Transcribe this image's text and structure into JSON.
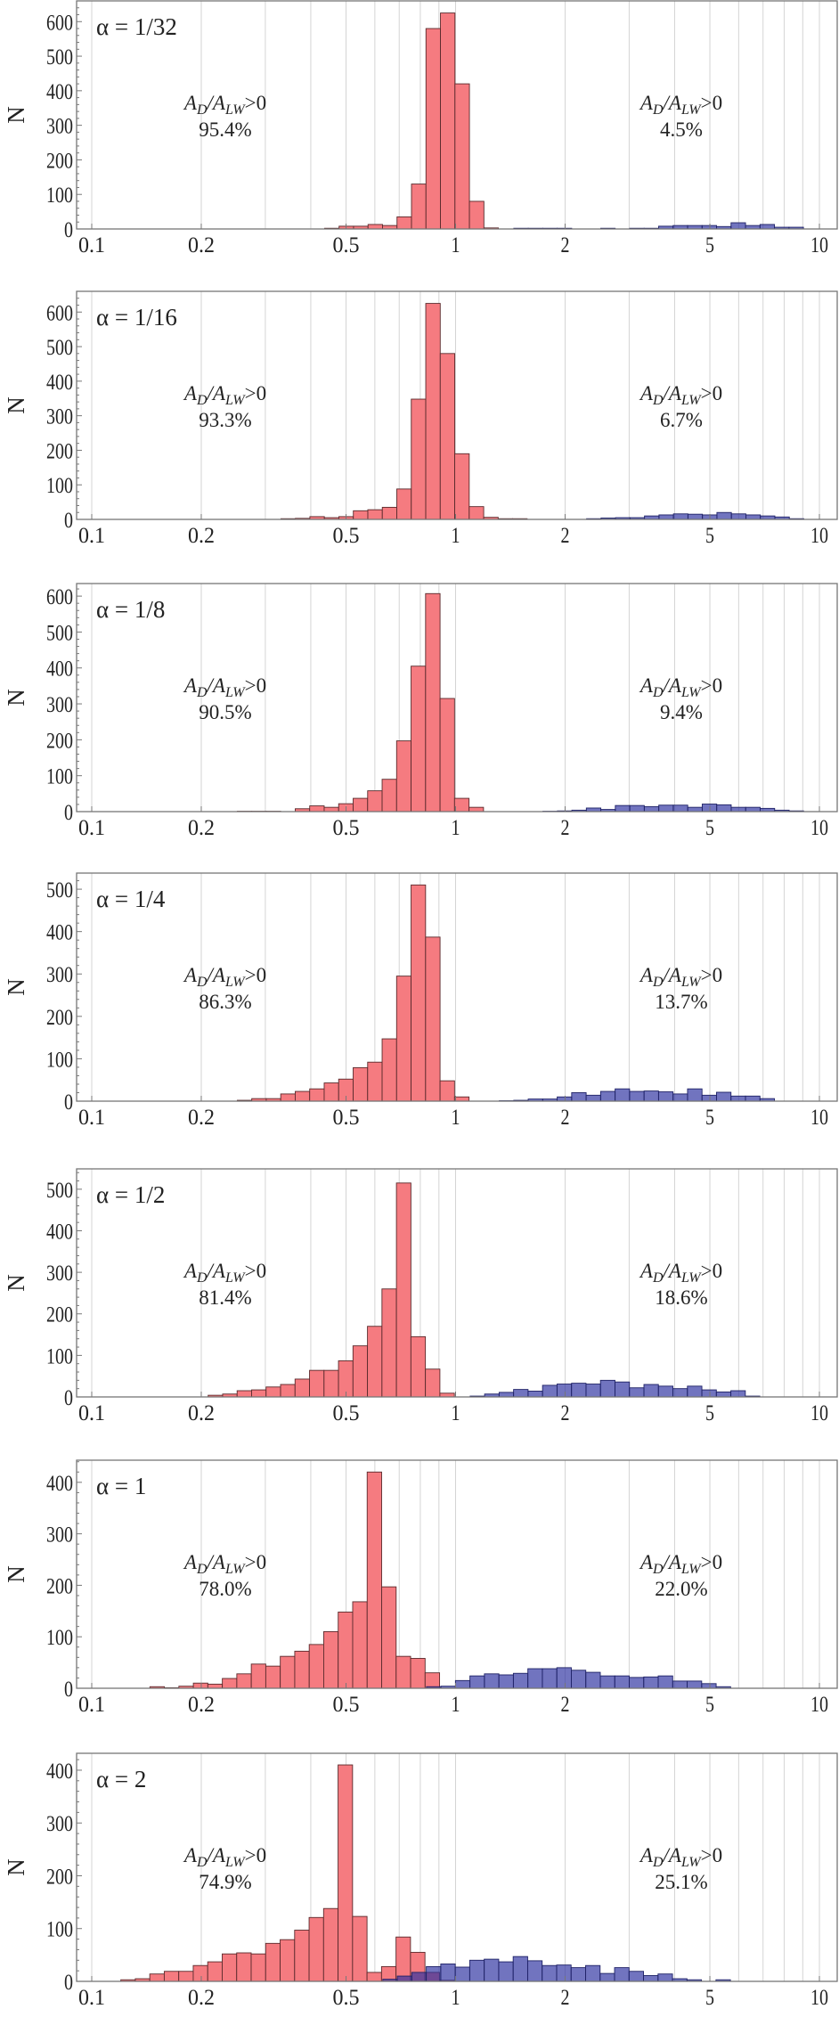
{
  "colors": {
    "red": "#f57b80",
    "blue": "#6f73bc"
  },
  "chart_data": [
    {
      "type": "bar",
      "title": "α = 1/32",
      "ylabel": "N",
      "x_scale": "log",
      "xlim": [
        0.1,
        10
      ],
      "ylim": [
        0,
        660
      ],
      "xticks": [
        "0.1",
        "0.2",
        "0.5",
        "1",
        "2",
        "5",
        "10"
      ],
      "yticks": [
        "0",
        "100",
        "200",
        "300",
        "400",
        "500",
        "600"
      ],
      "grid": "vertical",
      "bin_ratio": 1.096,
      "annotations": [
        {
          "text": "AD/ALW>0",
          "value": "95.4%"
        },
        {
          "text": "AD/ALW>0",
          "value": "4.5%"
        }
      ],
      "series": [
        {
          "color": "red",
          "bin_start": 0.4365,
          "counts": [
            2,
            8,
            8,
            13,
            10,
            35,
            130,
            580,
            625,
            420,
            80,
            3
          ]
        },
        {
          "color": "blue",
          "bin_start": 1.4454,
          "counts": [
            2,
            2,
            2,
            2,
            0,
            0,
            2,
            0,
            2,
            2,
            8,
            10,
            10,
            10,
            7,
            18,
            10,
            13,
            5,
            5
          ]
        }
      ]
    },
    {
      "type": "bar",
      "title": "α = 1/16",
      "ylabel": "N",
      "x_scale": "log",
      "xlim": [
        0.1,
        10
      ],
      "ylim": [
        0,
        660
      ],
      "xticks": [
        "0.1",
        "0.2",
        "0.5",
        "1",
        "2",
        "5",
        "10"
      ],
      "yticks": [
        "0",
        "100",
        "200",
        "300",
        "400",
        "500",
        "600"
      ],
      "grid": "vertical",
      "bin_ratio": 1.096,
      "annotations": [
        {
          "text": "AD/ALW>0",
          "value": "93.3%"
        },
        {
          "text": "AD/ALW>0",
          "value": "6.7%"
        }
      ],
      "series": [
        {
          "color": "red",
          "bin_start": 0.3311,
          "counts": [
            2,
            3,
            8,
            5,
            8,
            25,
            28,
            35,
            88,
            348,
            625,
            480,
            190,
            37,
            6,
            2,
            2
          ]
        },
        {
          "color": "blue",
          "bin_start": 2.2909,
          "counts": [
            2,
            4,
            5,
            5,
            10,
            13,
            16,
            15,
            13,
            20,
            16,
            13,
            10,
            7,
            2
          ]
        }
      ]
    },
    {
      "type": "bar",
      "title": "α = 1/8",
      "ylabel": "N",
      "x_scale": "log",
      "xlim": [
        0.1,
        10
      ],
      "ylim": [
        0,
        635
      ],
      "xticks": [
        "0.1",
        "0.2",
        "0.5",
        "1",
        "2",
        "5",
        "10"
      ],
      "yticks": [
        "0",
        "100",
        "200",
        "300",
        "400",
        "500",
        "600"
      ],
      "grid": "vertical",
      "bin_ratio": 1.096,
      "annotations": [
        {
          "text": "AD/ALW>0",
          "value": "90.5%"
        },
        {
          "text": "AD/ALW>0",
          "value": "9.4%"
        }
      ],
      "series": [
        {
          "color": "red",
          "bin_start": 0.2512,
          "counts": [
            1,
            1,
            1,
            0,
            8,
            16,
            12,
            22,
            37,
            58,
            90,
            197,
            405,
            607,
            315,
            37,
            12
          ]
        },
        {
          "color": "blue",
          "bin_start": 1.7378,
          "counts": [
            1,
            2,
            4,
            10,
            6,
            17,
            17,
            14,
            18,
            18,
            12,
            21,
            19,
            12,
            12,
            9,
            4,
            2
          ]
        }
      ]
    },
    {
      "type": "bar",
      "title": "α = 1/4",
      "ylabel": "N",
      "x_scale": "log",
      "xlim": [
        0.1,
        10
      ],
      "ylim": [
        0,
        538
      ],
      "xticks": [
        "0.1",
        "0.2",
        "0.5",
        "1",
        "2",
        "5",
        "10"
      ],
      "yticks": [
        "0",
        "100",
        "200",
        "300",
        "400",
        "500"
      ],
      "grid": "vertical",
      "bin_ratio": 1.096,
      "annotations": [
        {
          "text": "AD/ALW>0",
          "value": "86.3%"
        },
        {
          "text": "AD/ALW>0",
          "value": "13.7%"
        }
      ],
      "series": [
        {
          "color": "red",
          "bin_start": 0.2512,
          "counts": [
            2,
            6,
            6,
            17,
            23,
            29,
            43,
            52,
            79,
            92,
            147,
            295,
            510,
            387,
            48,
            10
          ]
        },
        {
          "color": "blue",
          "bin_start": 1.3183,
          "counts": [
            1,
            2,
            5,
            5,
            10,
            20,
            14,
            23,
            29,
            23,
            24,
            22,
            17,
            29,
            14,
            21,
            12,
            12,
            6
          ]
        }
      ]
    },
    {
      "type": "bar",
      "title": "α = 1/2",
      "ylabel": "N",
      "x_scale": "log",
      "xlim": [
        0.1,
        10
      ],
      "ylim": [
        0,
        549
      ],
      "xticks": [
        "0.1",
        "0.2",
        "0.5",
        "1",
        "2",
        "5",
        "10"
      ],
      "yticks": [
        "0",
        "100",
        "200",
        "300",
        "400",
        "500"
      ],
      "grid": "vertical",
      "bin_ratio": 1.096,
      "annotations": [
        {
          "text": "AD/ALW>0",
          "value": "81.4%"
        },
        {
          "text": "AD/ALW>0",
          "value": "18.6%"
        }
      ],
      "series": [
        {
          "color": "red",
          "bin_start": 0.2089,
          "counts": [
            4,
            7,
            15,
            17,
            24,
            30,
            43,
            64,
            64,
            87,
            123,
            170,
            260,
            515,
            145,
            67,
            9
          ]
        },
        {
          "color": "blue",
          "bin_start": 1.0965,
          "counts": [
            2,
            7,
            11,
            18,
            14,
            28,
            31,
            33,
            31,
            40,
            36,
            22,
            30,
            26,
            20,
            26,
            17,
            12,
            15,
            2
          ]
        }
      ]
    },
    {
      "type": "bar",
      "title": "α = 1",
      "ylabel": "N",
      "x_scale": "log",
      "xlim": [
        0.1,
        10
      ],
      "ylim": [
        0,
        443
      ],
      "xticks": [
        "0.1",
        "0.2",
        "0.5",
        "1",
        "2",
        "5",
        "10"
      ],
      "yticks": [
        "0",
        "100",
        "200",
        "300",
        "400"
      ],
      "grid": "vertical",
      "bin_ratio": 1.096,
      "annotations": [
        {
          "text": "AD/ALW>0",
          "value": "78.0%"
        },
        {
          "text": "AD/ALW>0",
          "value": "22.0%"
        }
      ],
      "series": [
        {
          "color": "red",
          "bin_start": 0.1445,
          "counts": [
            3,
            1,
            4,
            10,
            8,
            19,
            28,
            47,
            43,
            62,
            72,
            85,
            110,
            148,
            168,
            420,
            197,
            62,
            58,
            30
          ]
        },
        {
          "color": "blue",
          "bin_start": 0.8318,
          "counts": [
            3,
            4,
            15,
            24,
            28,
            26,
            29,
            38,
            38,
            40,
            35,
            31,
            24,
            24,
            21,
            22,
            24,
            14,
            14,
            9,
            3
          ]
        }
      ]
    },
    {
      "type": "bar",
      "title": "α = 2",
      "ylabel": "N",
      "x_scale": "log",
      "xlim": [
        0.1,
        10
      ],
      "ylim": [
        0,
        432
      ],
      "xticks": [
        "0.1",
        "0.2",
        "0.5",
        "1",
        "2",
        "5",
        "10"
      ],
      "yticks": [
        "0",
        "100",
        "200",
        "300",
        "400"
      ],
      "grid": "vertical",
      "bin_ratio": 1.096,
      "annotations": [
        {
          "text": "AD/ALW>0",
          "value": "74.9%"
        },
        {
          "text": "AD/ALW>0",
          "value": "25.1%"
        }
      ],
      "series": [
        {
          "color": "red",
          "bin_start": 0.1202,
          "counts": [
            3,
            5,
            14,
            19,
            19,
            30,
            37,
            52,
            54,
            52,
            72,
            79,
            97,
            121,
            138,
            410,
            123,
            17,
            28,
            84,
            55,
            17,
            2
          ]
        },
        {
          "color": "blue",
          "bin_start": 0.631,
          "counts": [
            4,
            10,
            17,
            28,
            33,
            27,
            40,
            42,
            37,
            47,
            39,
            30,
            31,
            26,
            30,
            15,
            26,
            19,
            11,
            14,
            5,
            3,
            0,
            3
          ]
        }
      ]
    }
  ]
}
